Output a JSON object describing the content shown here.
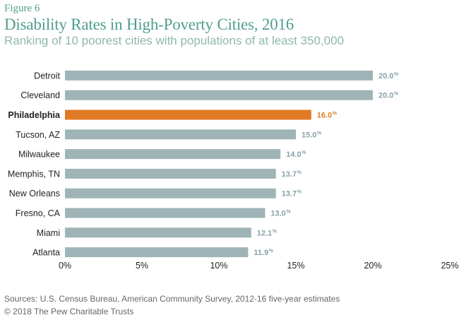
{
  "figure_label": "Figure 6",
  "title": "Disability Rates in High-Poverty Cities, 2016",
  "subtitle": "Ranking of 10 poorest cities with populations of at least 350,000",
  "sources": "Sources: U.S. Census Bureau, American Community Survey, 2012-16 five-year estimates",
  "copyright": "© 2018 The Pew Charitable Trusts",
  "colors": {
    "bar": "#9eb4b7",
    "highlight": "#e07a25",
    "title": "#4f9e8e",
    "subtitle": "#8fb8ad"
  },
  "chart_data": {
    "type": "bar",
    "orientation": "horizontal",
    "categories": [
      "Detroit",
      "Cleveland",
      "Philadelphia",
      "Tucson, AZ",
      "Milwaukee",
      "Memphis, TN",
      "New Orleans",
      "Fresno, CA",
      "Miami",
      "Atlanta"
    ],
    "values": [
      20.0,
      20.0,
      16.0,
      15.0,
      14.0,
      13.7,
      13.7,
      13.0,
      12.1,
      11.9
    ],
    "value_labels": [
      "20.0",
      "20.0",
      "16.0",
      "15.0",
      "14.0",
      "13.7",
      "13.7",
      "13.0",
      "12.1",
      "11.9"
    ],
    "value_suffix": "%",
    "highlight": "Philadelphia",
    "xlim": [
      0,
      25
    ],
    "xticks": [
      0,
      5,
      10,
      15,
      20,
      25
    ],
    "xtick_labels": [
      "0%",
      "5%",
      "10%",
      "15%",
      "20%",
      "25%"
    ],
    "grid": false
  }
}
